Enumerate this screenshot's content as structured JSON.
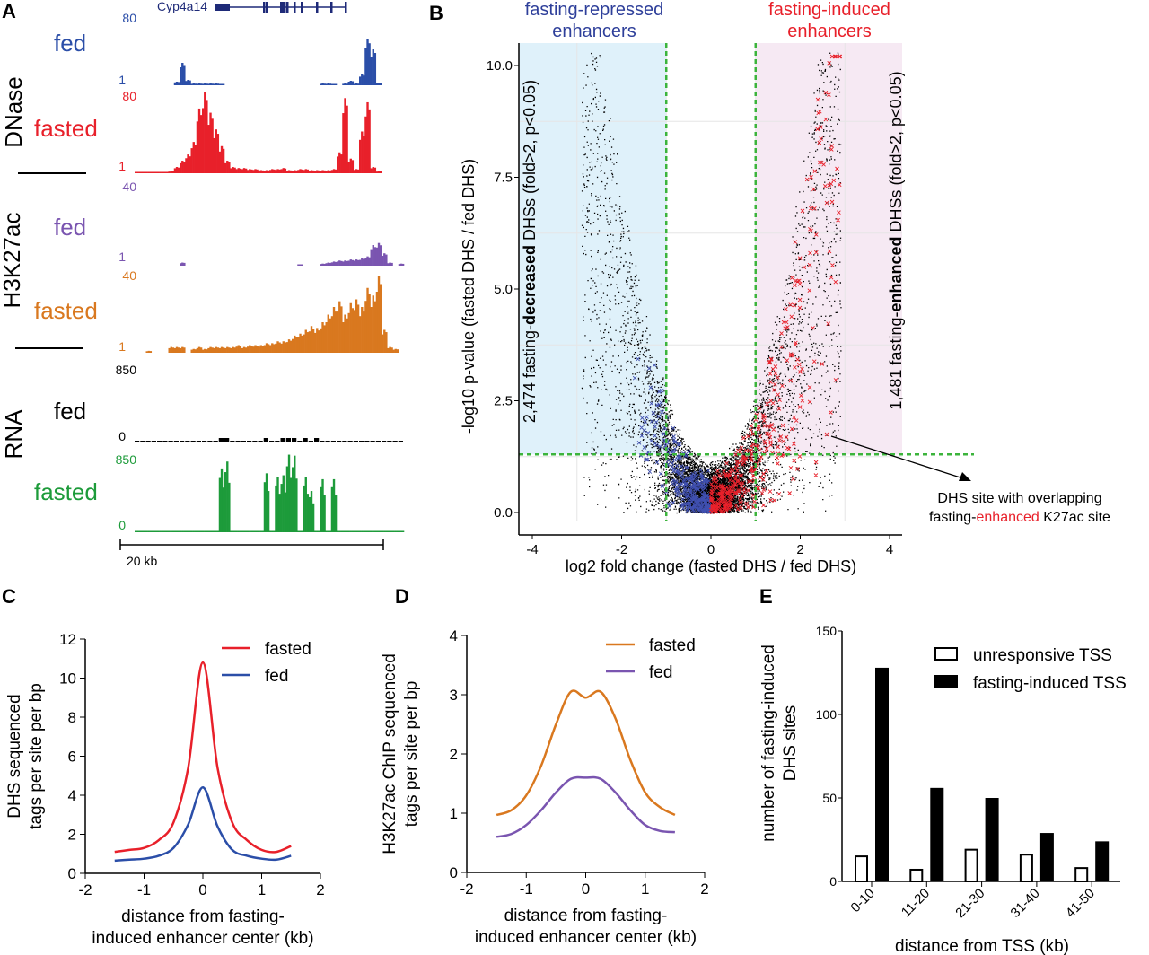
{
  "colors": {
    "fed_dnase": "#2b4ea8",
    "fasted_dnase": "#e8202a",
    "fed_k27": "#7a55b0",
    "fasted_k27": "#d9781f",
    "fed_rna": "#000000",
    "fasted_rna": "#1d9b3a",
    "threshold": "#3cb43c",
    "repressed_shade": "#dff1fa",
    "induced_shade": "#f6e9f3",
    "repressed_text": "#2e3f9a",
    "induced_text": "#e8202a"
  },
  "panels": {
    "A": "A",
    "B": "B",
    "C": "C",
    "D": "D",
    "E": "E"
  },
  "chart_data": [
    {
      "panel": "A",
      "type": "area",
      "gene_label": "Cyp4a14",
      "group_labels": [
        "DNase",
        "H3K27ac",
        "RNA"
      ],
      "scale_bar": "20 kb",
      "tracks": [
        {
          "name": "fed",
          "group": "DNase",
          "max": "80",
          "min": "1",
          "color_key": "fed_dnase",
          "values": [
            null,
            null,
            null,
            null,
            null,
            null,
            null,
            4,
            25,
            6,
            2,
            2,
            2,
            2,
            2,
            1,
            null,
            null,
            null,
            null,
            null,
            null,
            null,
            null,
            null,
            null,
            null,
            null,
            null,
            null,
            null,
            null,
            null,
            2,
            2,
            1,
            null,
            2,
            5,
            2,
            12,
            52,
            40,
            3,
            null,
            null,
            null,
            null
          ]
        },
        {
          "name": "fasted",
          "group": "DNase",
          "max": "80",
          "min": "1",
          "color_key": "fasted_dnase",
          "values": [
            1,
            1,
            1,
            1,
            1,
            1,
            2,
            6,
            12,
            18,
            30,
            62,
            78,
            58,
            42,
            26,
            12,
            6,
            5,
            5,
            4,
            4,
            3,
            3,
            4,
            4,
            5,
            3,
            3,
            4,
            4,
            3,
            3,
            3,
            3,
            4,
            20,
            72,
            14,
            4,
            40,
            68,
            6,
            2,
            null,
            null,
            null,
            null
          ]
        },
        {
          "name": "fed",
          "group": "H3K27ac",
          "max": "40",
          "min": "1",
          "color_key": "fed_k27",
          "values": [
            null,
            null,
            null,
            null,
            null,
            null,
            null,
            null,
            3,
            null,
            null,
            null,
            null,
            null,
            null,
            null,
            null,
            null,
            null,
            null,
            null,
            null,
            null,
            null,
            null,
            null,
            null,
            null,
            null,
            1,
            null,
            null,
            null,
            2,
            3,
            4,
            5,
            5,
            6,
            6,
            7,
            9,
            20,
            22,
            12,
            3,
            null,
            2
          ]
        },
        {
          "name": "fasted",
          "group": "H3K27ac",
          "max": "40",
          "min": "1",
          "color_key": "fasted_k27",
          "values": [
            null,
            null,
            1,
            null,
            null,
            null,
            3,
            3,
            3,
            null,
            2,
            3,
            2,
            3,
            3,
            3,
            3,
            3,
            4,
            3,
            4,
            4,
            4,
            5,
            5,
            6,
            6,
            7,
            9,
            10,
            12,
            14,
            13,
            16,
            20,
            24,
            27,
            20,
            26,
            28,
            24,
            34,
            30,
            40,
            12,
            3,
            2,
            null
          ]
        },
        {
          "name": "fed",
          "group": "RNA",
          "max": "850",
          "min": "0",
          "color_key": "fed_rna",
          "values": [
            1,
            1,
            1,
            1,
            1,
            1,
            1,
            1,
            1,
            1,
            1,
            1,
            1,
            1,
            1,
            12,
            10,
            1,
            1,
            1,
            1,
            1,
            1,
            8,
            1,
            1,
            10,
            12,
            14,
            1,
            8,
            1,
            6,
            1,
            1,
            5,
            1,
            1,
            1,
            1,
            1,
            1,
            1,
            1,
            1,
            1,
            1,
            1
          ]
        },
        {
          "name": "fasted",
          "group": "RNA",
          "max": "850",
          "min": "0",
          "color_key": "fasted_rna",
          "values": [
            2,
            2,
            2,
            2,
            2,
            2,
            2,
            2,
            2,
            2,
            2,
            2,
            2,
            2,
            2,
            650,
            720,
            10,
            8,
            6,
            5,
            4,
            5,
            600,
            8,
            560,
            580,
            790,
            780,
            10,
            560,
            420,
            8,
            540,
            8,
            540,
            6,
            4,
            3,
            2,
            2,
            2,
            2,
            2,
            2,
            2,
            2,
            2
          ]
        }
      ]
    },
    {
      "panel": "B",
      "type": "scatter",
      "xlabel": "log2 fold change (fasted DHS / fed DHS)",
      "ylabel": "-log10 p-value (fasted DHS / fed DHS)",
      "xlim": [
        -4.3,
        4.3
      ],
      "ylim": [
        -0.1,
        10.5
      ],
      "xticks": [
        "-4",
        "-2",
        "0",
        "2",
        "4"
      ],
      "yticks": [
        "0.0",
        "2.5",
        "5.0",
        "7.5",
        "10.0"
      ],
      "grid": true,
      "thresholds": {
        "log2fc": [
          -1,
          1
        ],
        "neglog10p": 1.3
      },
      "region_titles": {
        "left_line1": "fasting-repressed",
        "left_line2": "enhancers",
        "right_line1": "fasting-induced",
        "right_line2": "enhancers"
      },
      "left_label": {
        "count": "2,474 fasting-",
        "bold": "decreased",
        "rest": " DHSs (fold>2, p<0.05)"
      },
      "right_label": {
        "count": "1,481 fasting-",
        "bold": "enhanced",
        "rest": " DHSs (fold>2, p<0.05)"
      },
      "annotation": {
        "line1": "DHS site with overlapping",
        "line2_pre": "fasting-",
        "line2_red": "enhanced",
        "line2_post": " K27ac site"
      }
    },
    {
      "panel": "C",
      "type": "line",
      "xlabel_line1": "distance from fasting-",
      "xlabel_line2": "induced enhancer center (kb)",
      "ylabel_line1": "DHS sequenced",
      "ylabel_line2": "tags per site per bp",
      "xlim": [
        -2,
        2
      ],
      "ylim": [
        0,
        12
      ],
      "xticks": [
        "-2",
        "-1",
        "0",
        "1",
        "2"
      ],
      "yticks": [
        "0",
        "2",
        "4",
        "6",
        "8",
        "10",
        "12"
      ],
      "legend_position": "top-right",
      "x": [
        -1.5,
        -1.25,
        -1,
        -0.75,
        -0.5,
        -0.25,
        0,
        0.25,
        0.5,
        0.75,
        1,
        1.25,
        1.5
      ],
      "series": [
        {
          "name": "fasted",
          "color_key": "fasted_dnase",
          "values": [
            1.1,
            1.2,
            1.3,
            1.7,
            2.6,
            5.4,
            10.8,
            5.4,
            2.6,
            1.7,
            1.2,
            1.1,
            1.4
          ]
        },
        {
          "name": "fed",
          "color_key": "fed_dnase",
          "values": [
            0.65,
            0.7,
            0.75,
            0.9,
            1.3,
            2.5,
            4.4,
            2.4,
            1.2,
            0.9,
            0.75,
            0.7,
            0.9
          ]
        }
      ]
    },
    {
      "panel": "D",
      "type": "line",
      "xlabel_line1": "distance from fasting-",
      "xlabel_line2": "induced enhancer center (kb)",
      "ylabel_line1": "H3K27ac ChIP sequenced",
      "ylabel_line2": "tags per site per bp",
      "xlim": [
        -2,
        2
      ],
      "ylim": [
        0,
        4
      ],
      "xticks": [
        "-2",
        "-1",
        "0",
        "1",
        "2"
      ],
      "yticks": [
        "0",
        "1",
        "2",
        "3",
        "4"
      ],
      "legend_position": "top-right",
      "x": [
        -1.5,
        -1.25,
        -1,
        -0.75,
        -0.5,
        -0.25,
        0,
        0.25,
        0.5,
        0.75,
        1,
        1.25,
        1.5
      ],
      "series": [
        {
          "name": "fasted",
          "color_key": "fasted_k27",
          "values": [
            0.97,
            1.05,
            1.3,
            1.8,
            2.5,
            3.05,
            2.95,
            3.05,
            2.6,
            1.9,
            1.35,
            1.1,
            0.97
          ]
        },
        {
          "name": "fed",
          "color_key": "fed_k27",
          "values": [
            0.6,
            0.65,
            0.8,
            1.05,
            1.35,
            1.58,
            1.6,
            1.58,
            1.35,
            1.05,
            0.8,
            0.7,
            0.68
          ]
        }
      ]
    },
    {
      "panel": "E",
      "type": "bar",
      "xlabel": "distance from TSS (kb)",
      "ylabel_line1": "number of fasting-induced",
      "ylabel_line2": "DHS sites",
      "ylim": [
        0,
        150
      ],
      "yticks": [
        "0",
        "50",
        "100",
        "150"
      ],
      "legend_position": "top-right",
      "categories": [
        "0-10",
        "11-20",
        "21-30",
        "31-40",
        "41-50"
      ],
      "series": [
        {
          "name": "unresponsive TSS",
          "fill": "#ffffff",
          "values": [
            15,
            7,
            19,
            16,
            8
          ]
        },
        {
          "name": "fasting-induced TSS",
          "fill": "#000000",
          "values": [
            128,
            56,
            50,
            29,
            24
          ]
        }
      ]
    }
  ]
}
